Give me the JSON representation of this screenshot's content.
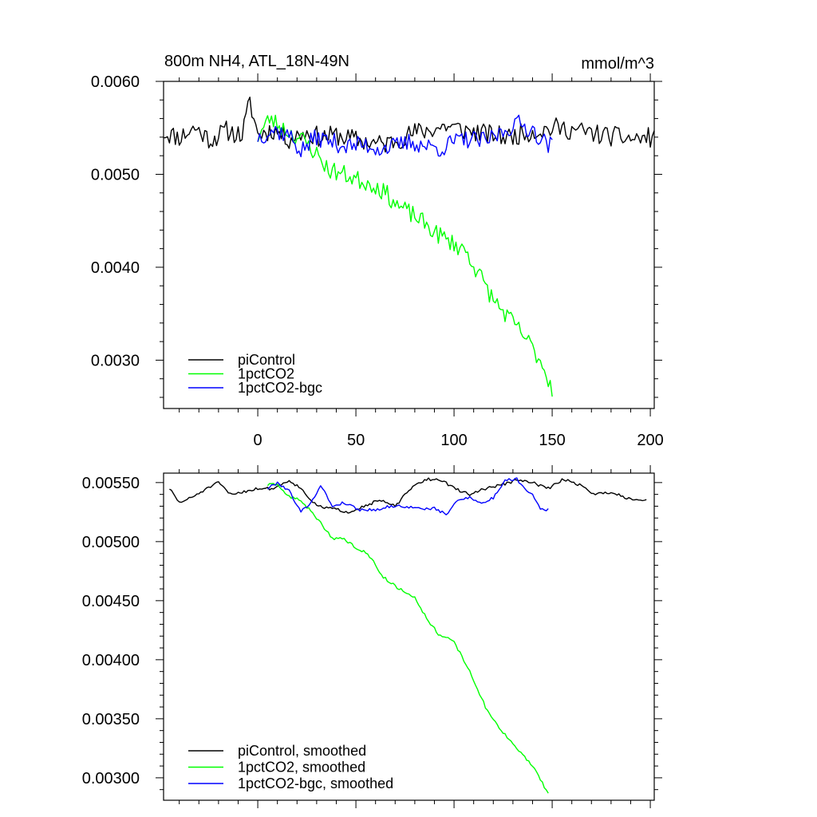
{
  "chart_data": [
    {
      "type": "line",
      "title": "800m NH4, ATL_18N-49N",
      "units": "mmol/m^3",
      "xlim": [
        -48,
        202
      ],
      "ylim": [
        0.00248,
        0.006
      ],
      "x_ticks": [
        0,
        50,
        100,
        150,
        200
      ],
      "x_tick_labels": [
        "0",
        "50",
        "100",
        "150",
        "200"
      ],
      "y_ticks": [
        0.003,
        0.004,
        0.005,
        0.006
      ],
      "y_tick_labels": [
        "0.0030",
        "0.0040",
        "0.0050",
        "0.0060"
      ],
      "legend": [
        "piControl",
        "1pctCO2",
        "1pctCO2-bgc"
      ],
      "series": [
        {
          "name": "piControl",
          "color": "#000000",
          "x_start": -48,
          "x_end": 202,
          "points": [
            [
              -48,
              0.00545
            ],
            [
              -40,
              0.0054
            ],
            [
              -32,
              0.0055
            ],
            [
              -24,
              0.00537
            ],
            [
              -16,
              0.00547
            ],
            [
              -8,
              0.00542
            ],
            [
              -4,
              0.00578
            ],
            [
              0,
              0.00543
            ],
            [
              8,
              0.00548
            ],
            [
              16,
              0.00538
            ],
            [
              24,
              0.00545
            ],
            [
              32,
              0.0054
            ],
            [
              40,
              0.00542
            ],
            [
              48,
              0.00538
            ],
            [
              56,
              0.00535
            ],
            [
              64,
              0.00532
            ],
            [
              72,
              0.00538
            ],
            [
              80,
              0.00545
            ],
            [
              88,
              0.00548
            ],
            [
              96,
              0.00552
            ],
            [
              104,
              0.00548
            ],
            [
              112,
              0.00545
            ],
            [
              120,
              0.00542
            ],
            [
              128,
              0.0054
            ],
            [
              136,
              0.00545
            ],
            [
              144,
              0.00547
            ],
            [
              152,
              0.0055
            ],
            [
              160,
              0.00548
            ],
            [
              168,
              0.00545
            ],
            [
              176,
              0.00542
            ],
            [
              184,
              0.0054
            ],
            [
              192,
              0.00538
            ],
            [
              202,
              0.0054
            ]
          ],
          "noise": 0.00011,
          "seed": 11
        },
        {
          "name": "1pctCO2",
          "color": "#00ff00",
          "x_start": 0,
          "x_end": 150,
          "points": [
            [
              0,
              0.0054
            ],
            [
              6,
              0.0056
            ],
            [
              14,
              0.00548
            ],
            [
              24,
              0.00535
            ],
            [
              30,
              0.00522
            ],
            [
              36,
              0.00505
            ],
            [
              44,
              0.005
            ],
            [
              50,
              0.00495
            ],
            [
              60,
              0.00488
            ],
            [
              66,
              0.00478
            ],
            [
              72,
              0.00465
            ],
            [
              80,
              0.00455
            ],
            [
              86,
              0.00445
            ],
            [
              92,
              0.00435
            ],
            [
              100,
              0.00425
            ],
            [
              106,
              0.00418
            ],
            [
              112,
              0.00395
            ],
            [
              120,
              0.00365
            ],
            [
              128,
              0.00345
            ],
            [
              136,
              0.00325
            ],
            [
              144,
              0.003
            ],
            [
              150,
              0.0027
            ]
          ],
          "noise": 0.0001,
          "seed": 23
        },
        {
          "name": "1pctCO2-bgc",
          "color": "#0000ff",
          "x_start": 0,
          "x_end": 150,
          "points": [
            [
              0,
              0.0054
            ],
            [
              8,
              0.00548
            ],
            [
              16,
              0.00542
            ],
            [
              22,
              0.00525
            ],
            [
              30,
              0.0054
            ],
            [
              38,
              0.00535
            ],
            [
              46,
              0.0053
            ],
            [
              54,
              0.00532
            ],
            [
              62,
              0.00528
            ],
            [
              70,
              0.0053
            ],
            [
              78,
              0.00535
            ],
            [
              86,
              0.0053
            ],
            [
              94,
              0.00528
            ],
            [
              100,
              0.00535
            ],
            [
              108,
              0.00538
            ],
            [
              116,
              0.00535
            ],
            [
              124,
              0.00545
            ],
            [
              132,
              0.00555
            ],
            [
              140,
              0.00548
            ],
            [
              146,
              0.00535
            ],
            [
              150,
              0.0053
            ]
          ],
          "noise": 0.0001,
          "seed": 37
        }
      ]
    },
    {
      "type": "line",
      "title": "",
      "xlim": [
        -48,
        202
      ],
      "ylim": [
        0.00281,
        0.00558
      ],
      "x_ticks": [
        0,
        50,
        100,
        150,
        200
      ],
      "x_tick_labels": [],
      "y_ticks": [
        0.003,
        0.0035,
        0.004,
        0.0045,
        0.005,
        0.0055
      ],
      "y_tick_labels": [
        "0.00300",
        "0.00350",
        "0.00400",
        "0.00450",
        "0.00500",
        "0.00550"
      ],
      "legend": [
        "piControl, smoothed",
        "1pctCO2, smoothed",
        "1pctCO2-bgc, smoothed"
      ],
      "series": [
        {
          "name": "piControl, smoothed",
          "color": "#000000",
          "x_start": -45,
          "x_end": 198,
          "points": [
            [
              -45,
              0.00545
            ],
            [
              -40,
              0.00533
            ],
            [
              -34,
              0.00537
            ],
            [
              -28,
              0.00543
            ],
            [
              -20,
              0.0055
            ],
            [
              -14,
              0.0054
            ],
            [
              -8,
              0.00542
            ],
            [
              0,
              0.00545
            ],
            [
              8,
              0.00545
            ],
            [
              16,
              0.00552
            ],
            [
              22,
              0.00545
            ],
            [
              30,
              0.0053
            ],
            [
              38,
              0.00528
            ],
            [
              46,
              0.00525
            ],
            [
              54,
              0.0053
            ],
            [
              62,
              0.00535
            ],
            [
              70,
              0.0053
            ],
            [
              78,
              0.00545
            ],
            [
              86,
              0.00553
            ],
            [
              94,
              0.00552
            ],
            [
              100,
              0.00545
            ],
            [
              108,
              0.0054
            ],
            [
              116,
              0.00545
            ],
            [
              124,
              0.00548
            ],
            [
              132,
              0.00552
            ],
            [
              140,
              0.0055
            ],
            [
              148,
              0.00545
            ],
            [
              156,
              0.00553
            ],
            [
              164,
              0.00548
            ],
            [
              172,
              0.0054
            ],
            [
              180,
              0.00542
            ],
            [
              188,
              0.00537
            ],
            [
              198,
              0.00535
            ]
          ],
          "noise": 1.2e-05,
          "seed": 51
        },
        {
          "name": "1pctCO2, smoothed",
          "color": "#00ff00",
          "x_start": 5,
          "x_end": 148,
          "points": [
            [
              5,
              0.00548
            ],
            [
              10,
              0.00548
            ],
            [
              16,
              0.00538
            ],
            [
              22,
              0.00535
            ],
            [
              30,
              0.0052
            ],
            [
              38,
              0.00503
            ],
            [
              44,
              0.00502
            ],
            [
              50,
              0.00495
            ],
            [
              56,
              0.0049
            ],
            [
              64,
              0.0047
            ],
            [
              72,
              0.0046
            ],
            [
              80,
              0.00453
            ],
            [
              86,
              0.00435
            ],
            [
              92,
              0.00422
            ],
            [
              100,
              0.00415
            ],
            [
              108,
              0.0039
            ],
            [
              116,
              0.0036
            ],
            [
              124,
              0.0034
            ],
            [
              132,
              0.00325
            ],
            [
              140,
              0.0031
            ],
            [
              148,
              0.00287
            ]
          ],
          "noise": 1.2e-05,
          "seed": 63
        },
        {
          "name": "1pctCO2-bgc, smoothed",
          "color": "#0000ff",
          "x_start": 5,
          "x_end": 148,
          "points": [
            [
              5,
              0.00545
            ],
            [
              10,
              0.0055
            ],
            [
              16,
              0.00543
            ],
            [
              22,
              0.00525
            ],
            [
              28,
              0.00535
            ],
            [
              32,
              0.00548
            ],
            [
              38,
              0.0053
            ],
            [
              44,
              0.00533
            ],
            [
              52,
              0.00527
            ],
            [
              60,
              0.00527
            ],
            [
              68,
              0.0053
            ],
            [
              74,
              0.0053
            ],
            [
              82,
              0.00528
            ],
            [
              90,
              0.00528
            ],
            [
              96,
              0.00523
            ],
            [
              102,
              0.00535
            ],
            [
              108,
              0.00538
            ],
            [
              114,
              0.00532
            ],
            [
              120,
              0.00537
            ],
            [
              126,
              0.00552
            ],
            [
              132,
              0.00553
            ],
            [
              136,
              0.00545
            ],
            [
              140,
              0.0054
            ],
            [
              144,
              0.00528
            ],
            [
              148,
              0.00527
            ]
          ],
          "noise": 1.2e-05,
          "seed": 79
        }
      ]
    }
  ]
}
